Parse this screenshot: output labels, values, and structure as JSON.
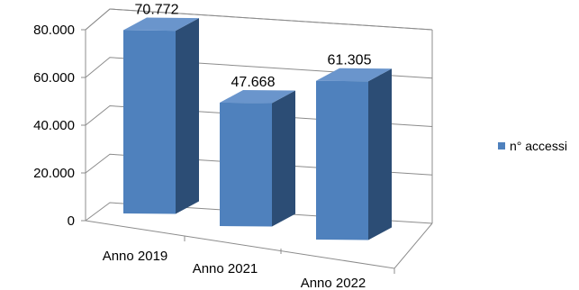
{
  "chart_data": {
    "type": "bar",
    "style": "3d-column",
    "categories": [
      "Anno 2019",
      "Anno 2021",
      "Anno 2022"
    ],
    "series": [
      {
        "name": "n° accessi",
        "values": [
          70772,
          47668,
          61305
        ],
        "color": "#4f81bd"
      }
    ],
    "data_labels": [
      "70.772",
      "47.668",
      "61.305"
    ],
    "yticks": [
      "0",
      "20.000",
      "40.000",
      "60.000",
      "80.000"
    ],
    "ylim": [
      0,
      80000
    ],
    "grid": true,
    "legend_position": "right",
    "colors": {
      "front": "#4f81bd",
      "side": "#2c4d75",
      "top": "#6a95cc"
    }
  }
}
